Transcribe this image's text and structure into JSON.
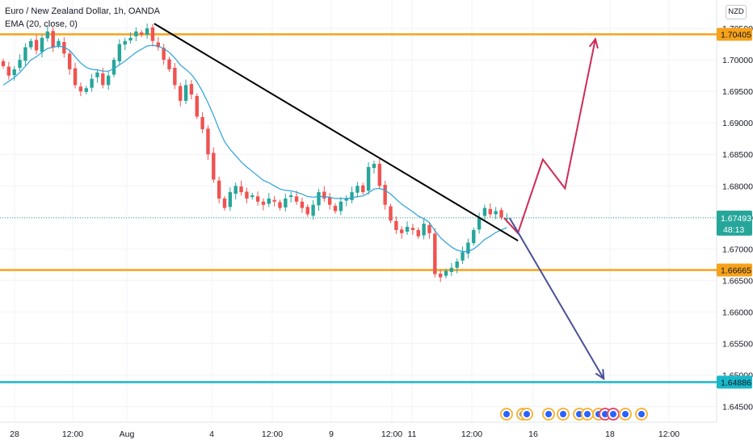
{
  "legend": {
    "symbol_line": "Euro / New Zealand Dollar, 1h, OANDA",
    "indicator_line": "EMA (20, close, 0)"
  },
  "currency_badge": "NZD",
  "colors": {
    "up": "#26a69a",
    "down": "#ef5350",
    "ema": "#2aa2d9",
    "support_orange": "#f7a21b",
    "support_cyan": "#19b8c9",
    "trendline": "#000000",
    "projection_bull": "#d02a56",
    "projection_bear": "#4a5098",
    "last_price": "#26a69a",
    "event_icon": "#2962ff",
    "event_ring": "#f5b73b"
  },
  "chart_data": {
    "type": "candlestick",
    "title": "Euro / New Zealand Dollar, 1h, OANDA",
    "indicator": "EMA (20, close, 0)",
    "y_range": [
      1.6425,
      1.7095
    ],
    "y_ticks": [
      "1.64500",
      "1.65000",
      "1.65500",
      "1.66000",
      "1.66500",
      "1.67000",
      "1.67500",
      "1.68000",
      "1.68500",
      "1.69000",
      "1.69500",
      "1.70000",
      "1.70500"
    ],
    "x_ticks": [
      "28",
      "12:00",
      "Aug",
      "4",
      "12:00",
      "9",
      "12:00",
      "11",
      "12:00",
      "16",
      "18",
      "12:00"
    ],
    "price_series": [
      1.699,
      1.6975,
      1.6985,
      1.7,
      1.702,
      1.703,
      1.7015,
      1.7035,
      1.7045,
      1.702,
      1.703,
      1.701,
      1.6985,
      1.696,
      1.695,
      1.6955,
      1.697,
      1.698,
      1.696,
      1.6975,
      1.7,
      1.7025,
      1.703,
      1.7035,
      1.7045,
      1.704,
      1.705,
      1.703,
      1.702,
      1.7,
      1.6985,
      1.696,
      1.6935,
      1.696,
      1.6945,
      1.691,
      1.689,
      1.685,
      1.681,
      1.678,
      1.6765,
      1.679,
      1.68,
      1.679,
      1.678,
      1.6785,
      1.6775,
      1.677,
      1.678,
      1.6775,
      1.6765,
      1.678,
      1.6785,
      1.6775,
      1.6765,
      1.6755,
      1.677,
      1.679,
      1.678,
      1.677,
      1.676,
      1.6775,
      1.678,
      1.679,
      1.68,
      1.679,
      1.683,
      1.6835,
      1.68,
      1.677,
      1.6745,
      1.673,
      1.6725,
      1.6735,
      1.673,
      1.672,
      1.674,
      1.6725,
      1.666,
      1.6655,
      1.6665,
      1.667,
      1.668,
      1.6695,
      1.671,
      1.673,
      1.675,
      1.6765,
      1.6755,
      1.676,
      1.675,
      1.6749
    ],
    "ema_series": [
      1.696,
      1.6966,
      1.6972,
      1.698,
      1.699,
      1.7,
      1.7005,
      1.7012,
      1.7018,
      1.702,
      1.7022,
      1.702,
      1.7015,
      1.7005,
      1.6995,
      1.6988,
      1.6985,
      1.6984,
      1.6982,
      1.6982,
      1.6986,
      1.6992,
      1.6998,
      1.7005,
      1.7012,
      1.7017,
      1.7022,
      1.7023,
      1.7022,
      1.7018,
      1.7012,
      1.7003,
      1.6992,
      1.6985,
      1.6977,
      1.6965,
      1.695,
      1.6932,
      1.6912,
      1.689,
      1.687,
      1.6858,
      1.6848,
      1.6838,
      1.683,
      1.6823,
      1.6816,
      1.6809,
      1.6805,
      1.68,
      1.6795,
      1.6793,
      1.6792,
      1.679,
      1.6787,
      1.6783,
      1.6782,
      1.6783,
      1.6783,
      1.6782,
      1.678,
      1.678,
      1.678,
      1.6781,
      1.6783,
      1.6784,
      1.6789,
      1.6795,
      1.6796,
      1.6793,
      1.6787,
      1.6779,
      1.6771,
      1.6765,
      1.6759,
      1.6752,
      1.6748,
      1.6742,
      1.6729,
      1.6718,
      1.671,
      1.6703,
      1.6698,
      1.6696,
      1.6696,
      1.67,
      1.6707,
      1.6715,
      1.672,
      1.6726,
      1.673,
      1.6734
    ],
    "horizontal_levels": [
      {
        "value": 1.70405,
        "label": "1.70405",
        "color": "#f7a21b"
      },
      {
        "value": 1.66665,
        "label": "1.66665",
        "color": "#f7a21b"
      },
      {
        "value": 1.64886,
        "label": "1.64886",
        "color": "#19b8c9"
      }
    ],
    "last_price": {
      "value": 1.67493,
      "label": "1.67493",
      "countdown": "48:13"
    },
    "trendline": [
      [
        1.0,
        1.70575
      ],
      [
        59.0,
        1.6713
      ]
    ],
    "projection_bullish": [
      [
        90.5,
        1.67493
      ],
      [
        93,
        1.6725
      ],
      [
        97.5,
        1.6842
      ],
      [
        101.5,
        1.6796
      ],
      [
        107,
        1.7033
      ]
    ],
    "projection_bearish": [
      [
        91.5,
        1.6749
      ],
      [
        108.5,
        1.6494
      ]
    ],
    "event_count": 13
  }
}
